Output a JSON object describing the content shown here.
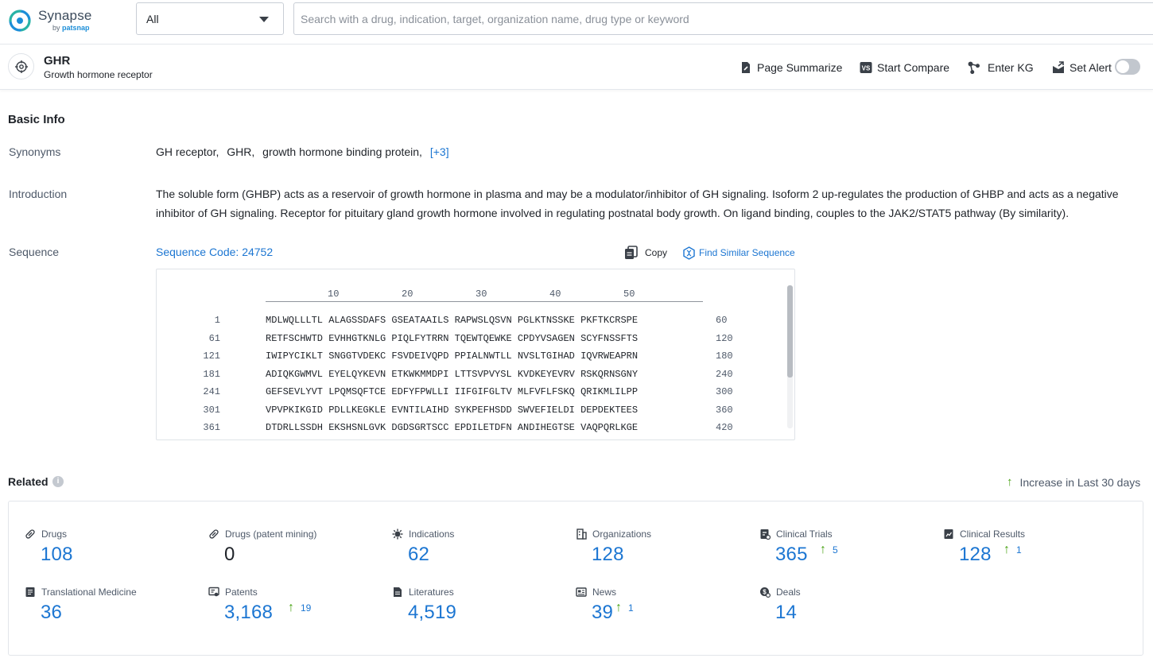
{
  "app": {
    "logo_name": "Synapse",
    "logo_by": "by",
    "logo_brand": "patsnap",
    "type_select_value": "All",
    "search_placeholder": "Search with a drug, indication, target, organization name, drug type or keyword"
  },
  "target": {
    "symbol": "GHR",
    "full_name": "Growth hormone receptor",
    "actions": {
      "summarize": "Page Summarize",
      "compare": "Start Compare",
      "kg": "Enter KG",
      "alert": "Set Alert",
      "alert_enabled": false
    }
  },
  "basic_info": {
    "title": "Basic Info",
    "synonyms_label": "Synonyms",
    "synonyms": [
      "GH receptor,",
      "GHR,",
      "growth hormone binding protein,"
    ],
    "synonyms_more": "[+3]",
    "introduction_label": "Introduction",
    "introduction": "The soluble form (GHBP) acts as a reservoir of growth hormone in plasma and may be a modulator/inhibitor of GH signaling. Isoform 2 up-regulates the production of GHBP and acts as a negative inhibitor of GH signaling. Receptor for pituitary gland growth hormone involved in regulating postnatal body growth. On ligand binding, couples to the JAK2/STAT5 pathway (By similarity).",
    "sequence_label": "Sequence",
    "sequence_code": "Sequence Code: 24752",
    "copy_label": "Copy",
    "find_similar_label": "Find Similar Sequence",
    "ruler": [
      "10",
      "20",
      "30",
      "40",
      "50"
    ],
    "sequence_lines": [
      {
        "start": "1",
        "blocks": "MDLWQLLLTL ALAGSSDAFS GSEATAAILS RAPWSLQSVN PGLKTNSSKE PKFTKCRSPE",
        "end": "60"
      },
      {
        "start": "61",
        "blocks": "RETFSCHWTD EVHHGTKNLG PIQLFYTRRN TQEWTQEWKE CPDYVSAGEN SCYFNSSFTS",
        "end": "120"
      },
      {
        "start": "121",
        "blocks": "IWIPYCIKLT SNGGTVDEKC FSVDEIVQPD PPIALNWTLL NVSLTGIHAD IQVRWEAPRN",
        "end": "180"
      },
      {
        "start": "181",
        "blocks": "ADIQKGWMVL EYELQYKEVN ETKWKMMDPI LTTSVPVYSL KVDKEYEVRV RSKQRNSGNY",
        "end": "240"
      },
      {
        "start": "241",
        "blocks": "GEFSEVLYVT LPQMSQFTCE EDFYFPWLLI IIFGIFGLTV MLFVFLFSKQ QRIKMLILPP",
        "end": "300"
      },
      {
        "start": "301",
        "blocks": "VPVPKIKGID PDLLKEGKLE EVNTILAIHD SYKPEFHSDD SWVEFIELDI DEPDEKTEES",
        "end": "360"
      },
      {
        "start": "361",
        "blocks": "DTDRLLSSDH EKSHSNLGVK DGDSGRTSCC EPDILETDFN ANDIHEGTSE VAQPQRLKGE",
        "end": "420"
      }
    ]
  },
  "related": {
    "title": "Related",
    "legend": "Increase in Last 30 days",
    "stats": [
      {
        "label": "Drugs",
        "value": "108",
        "increase": ""
      },
      {
        "label": "Drugs (patent mining)",
        "value": "0",
        "increase": ""
      },
      {
        "label": "Indications",
        "value": "62",
        "increase": ""
      },
      {
        "label": "Organizations",
        "value": "128",
        "increase": ""
      },
      {
        "label": "Clinical Trials",
        "value": "365",
        "increase": "5"
      },
      {
        "label": "Clinical Results",
        "value": "128",
        "increase": "1"
      },
      {
        "label": "Translational Medicine",
        "value": "36",
        "increase": ""
      },
      {
        "label": "Patents",
        "value": "3,168",
        "increase": "19"
      },
      {
        "label": "Literatures",
        "value": "4,519",
        "increase": ""
      },
      {
        "label": "News",
        "value": "39",
        "increase": "1"
      },
      {
        "label": "Deals",
        "value": "14",
        "increase": ""
      }
    ]
  },
  "colors": {
    "accent": "#1c76d2",
    "increase": "#4aa316",
    "label": "#4e5969"
  }
}
